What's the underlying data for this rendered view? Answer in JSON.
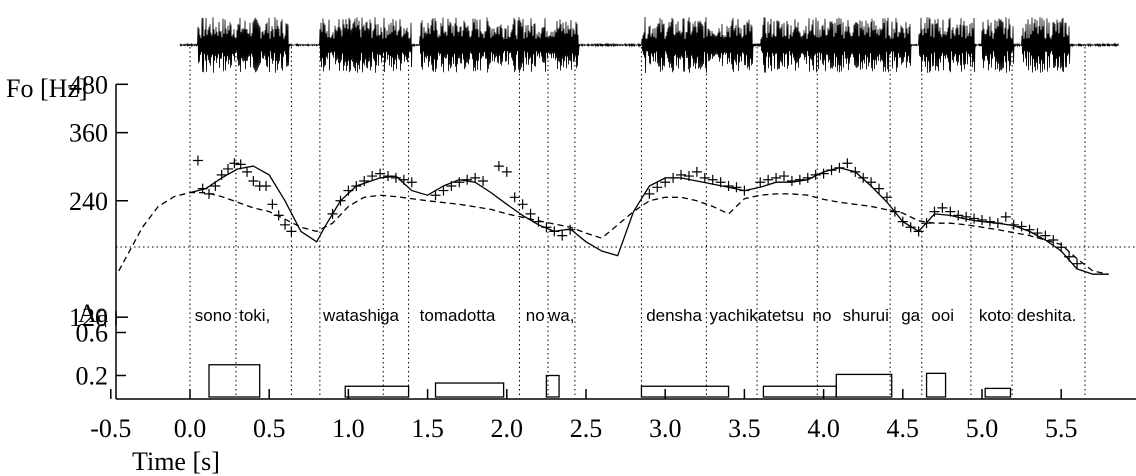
{
  "chart_data": {
    "type": "line",
    "xlabel": "Time [s]",
    "x_ticks": [
      -0.5,
      0.0,
      0.5,
      1.0,
      1.5,
      2.0,
      2.5,
      3.0,
      3.5,
      4.0,
      4.5,
      5.0,
      5.5
    ],
    "x_tick_labels": [
      "-0.5",
      "0.0",
      "0.5",
      "1.0",
      "1.5",
      "2.0",
      "2.5",
      "3.0",
      "3.5",
      "4.0",
      "4.5",
      "5.0",
      "5.5"
    ],
    "xlim": [
      -0.5,
      5.85
    ],
    "f0_panel": {
      "ylabel": "Fo [Hz]",
      "scale": "log",
      "y_ticks": [
        480,
        360,
        240,
        120
      ],
      "y_tick_labels": [
        "480",
        "360",
        "240",
        "120"
      ],
      "baseline_hz": 155,
      "series": [
        {
          "style": "solid",
          "x": [
            0.0,
            0.1,
            0.2,
            0.3,
            0.4,
            0.5,
            0.6,
            0.7,
            0.8,
            0.85,
            0.95,
            1.05,
            1.2,
            1.3,
            1.4,
            1.5,
            1.6,
            1.7,
            1.8,
            1.9,
            2.0,
            2.1,
            2.2,
            2.3,
            2.4,
            2.5,
            2.6,
            2.7,
            2.8,
            2.9,
            3.0,
            3.1,
            3.2,
            3.3,
            3.4,
            3.5,
            3.6,
            3.7,
            3.8,
            3.9,
            4.0,
            4.1,
            4.2,
            4.3,
            4.4,
            4.5,
            4.6,
            4.7,
            4.8,
            4.9,
            5.0,
            5.1,
            5.2,
            5.3,
            5.4,
            5.5,
            5.6,
            5.7,
            5.8
          ],
          "values": [
            252,
            258,
            275,
            290,
            295,
            280,
            240,
            200,
            188,
            205,
            240,
            262,
            275,
            278,
            255,
            248,
            262,
            272,
            268,
            252,
            235,
            220,
            208,
            200,
            203,
            188,
            178,
            173,
            225,
            262,
            275,
            275,
            270,
            265,
            260,
            255,
            260,
            268,
            268,
            272,
            285,
            292,
            285,
            262,
            238,
            212,
            200,
            222,
            220,
            215,
            212,
            210,
            207,
            200,
            190,
            178,
            160,
            155,
            155
          ]
        },
        {
          "style": "dashed",
          "x": [
            -0.45,
            -0.3,
            -0.2,
            -0.1,
            0.0,
            0.1,
            0.2,
            0.3,
            0.4,
            0.5,
            0.6,
            0.7,
            0.8,
            0.9,
            1.0,
            1.1,
            1.2,
            1.3,
            1.5,
            1.7,
            1.9,
            2.0,
            2.2,
            2.4,
            2.5,
            2.6,
            2.8,
            2.9,
            3.0,
            3.1,
            3.2,
            3.3,
            3.4,
            3.5,
            3.6,
            3.7,
            3.8,
            3.9,
            4.0,
            4.1,
            4.3,
            4.5,
            4.6,
            4.7,
            4.8,
            4.9,
            5.0,
            5.1,
            5.3,
            5.5,
            5.6,
            5.7,
            5.8
          ],
          "values": [
            158,
            205,
            232,
            246,
            252,
            252,
            246,
            238,
            230,
            225,
            215,
            205,
            200,
            210,
            232,
            245,
            248,
            246,
            240,
            235,
            228,
            222,
            213,
            205,
            198,
            192,
            225,
            240,
            245,
            245,
            240,
            232,
            222,
            243,
            248,
            250,
            250,
            248,
            242,
            238,
            232,
            223,
            213,
            210,
            210,
            208,
            205,
            202,
            195,
            185,
            170,
            158,
            155
          ]
        }
      ],
      "observed_points": {
        "x": [
          0.05,
          0.08,
          0.12,
          0.16,
          0.2,
          0.24,
          0.28,
          0.32,
          0.36,
          0.4,
          0.44,
          0.48,
          0.52,
          0.56,
          0.6,
          0.64,
          0.9,
          0.95,
          1.0,
          1.05,
          1.1,
          1.15,
          1.2,
          1.25,
          1.3,
          1.35,
          1.4,
          1.55,
          1.6,
          1.65,
          1.7,
          1.75,
          1.8,
          1.85,
          1.95,
          2.0,
          2.05,
          2.1,
          2.15,
          2.2,
          2.25,
          2.3,
          2.35,
          2.4,
          2.9,
          2.95,
          3.0,
          3.05,
          3.1,
          3.15,
          3.2,
          3.25,
          3.3,
          3.35,
          3.4,
          3.45,
          3.5,
          3.6,
          3.65,
          3.7,
          3.75,
          3.8,
          3.85,
          3.9,
          3.95,
          4.0,
          4.05,
          4.1,
          4.15,
          4.2,
          4.25,
          4.3,
          4.35,
          4.4,
          4.45,
          4.5,
          4.55,
          4.6,
          4.65,
          4.7,
          4.75,
          4.8,
          4.85,
          4.9,
          4.95,
          5.0,
          5.05,
          5.1,
          5.15,
          5.2,
          5.25,
          5.3,
          5.35,
          5.4,
          5.45,
          5.5,
          5.55,
          5.6
        ],
        "values": [
          305,
          258,
          250,
          262,
          280,
          290,
          300,
          298,
          285,
          270,
          262,
          262,
          235,
          220,
          208,
          200,
          222,
          240,
          255,
          262,
          270,
          278,
          282,
          278,
          275,
          272,
          268,
          248,
          255,
          262,
          268,
          272,
          275,
          270,
          295,
          285,
          245,
          235,
          222,
          212,
          205,
          200,
          195,
          202,
          250,
          260,
          268,
          275,
          280,
          278,
          285,
          275,
          272,
          268,
          262,
          260,
          255,
          268,
          272,
          275,
          278,
          270,
          272,
          275,
          280,
          282,
          288,
          292,
          300,
          285,
          275,
          268,
          258,
          245,
          225,
          212,
          205,
          200,
          210,
          225,
          230,
          225,
          220,
          218,
          216,
          214,
          212,
          210,
          218,
          208,
          206,
          202,
          198,
          195,
          190,
          182,
          172,
          165
        ]
      }
    },
    "accent_panel": {
      "ylabel": "Aa",
      "y_ticks": [
        0.6,
        0.2
      ],
      "y_tick_labels": [
        "0.6",
        "0.2"
      ],
      "ylim": [
        0,
        0.8
      ],
      "commands": [
        {
          "start": 0.12,
          "end": 0.44,
          "amplitude": 0.3
        },
        {
          "start": 0.98,
          "end": 1.38,
          "amplitude": 0.1
        },
        {
          "start": 1.55,
          "end": 1.98,
          "amplitude": 0.13
        },
        {
          "start": 2.25,
          "end": 2.33,
          "amplitude": 0.2
        },
        {
          "start": 2.85,
          "end": 3.4,
          "amplitude": 0.1
        },
        {
          "start": 3.62,
          "end": 4.08,
          "amplitude": 0.1
        },
        {
          "start": 4.08,
          "end": 4.43,
          "amplitude": 0.21
        },
        {
          "start": 4.65,
          "end": 4.77,
          "amplitude": 0.22
        },
        {
          "start": 5.02,
          "end": 5.18,
          "amplitude": 0.08
        }
      ]
    },
    "boundaries": [
      0.0,
      0.29,
      0.64,
      0.82,
      1.22,
      1.38,
      2.08,
      2.26,
      2.43,
      2.85,
      3.26,
      3.58,
      3.96,
      4.42,
      4.62,
      4.93,
      5.19,
      5.65
    ],
    "words": [
      {
        "text": "sono",
        "x": 0.03
      },
      {
        "text": "toki,",
        "x": 0.31
      },
      {
        "text": "watashi",
        "x": 0.84
      },
      {
        "text": "ga",
        "x": 1.2
      },
      {
        "text": "tomadotta",
        "x": 1.45
      },
      {
        "text": "no",
        "x": 2.12
      },
      {
        "text": "wa,",
        "x": 2.26
      },
      {
        "text": "densha",
        "x": 2.88
      },
      {
        "text": "yachikatetsu",
        "x": 3.28
      },
      {
        "text": "no",
        "x": 3.93
      },
      {
        "text": "shurui",
        "x": 4.12
      },
      {
        "text": "ga",
        "x": 4.49
      },
      {
        "text": "ooi",
        "x": 4.68
      },
      {
        "text": "koto",
        "x": 4.98
      },
      {
        "text": "deshita.",
        "x": 5.22
      }
    ]
  }
}
